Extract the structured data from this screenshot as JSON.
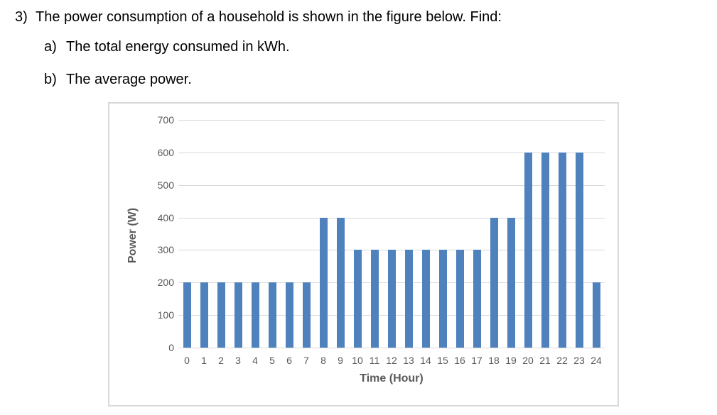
{
  "question": {
    "number": "3)",
    "text": "The power consumption of a household is shown in the figure below. Find:",
    "parts": [
      {
        "label": "a)",
        "text": "The total energy consumed in kWh."
      },
      {
        "label": "b)",
        "text": "The average power."
      }
    ]
  },
  "chart_data": {
    "type": "bar",
    "x": [
      0,
      1,
      2,
      3,
      4,
      5,
      6,
      7,
      8,
      9,
      10,
      11,
      12,
      13,
      14,
      15,
      16,
      17,
      18,
      19,
      20,
      21,
      22,
      23,
      24
    ],
    "values": [
      200,
      200,
      200,
      200,
      200,
      200,
      200,
      200,
      400,
      400,
      300,
      300,
      300,
      300,
      300,
      300,
      300,
      300,
      400,
      400,
      600,
      600,
      600,
      600,
      200
    ],
    "xlabel": "Time (Hour)",
    "ylabel": "Power (W)",
    "ylim": [
      0,
      700
    ],
    "yticks": [
      0,
      100,
      200,
      300,
      400,
      500,
      600,
      700
    ],
    "grid": true,
    "legend": "none",
    "bar_color": "#4f81bd",
    "grid_color": "#d9d9d9",
    "axis_text_color": "#595959",
    "frame_border_color": "#d9d9d9"
  }
}
